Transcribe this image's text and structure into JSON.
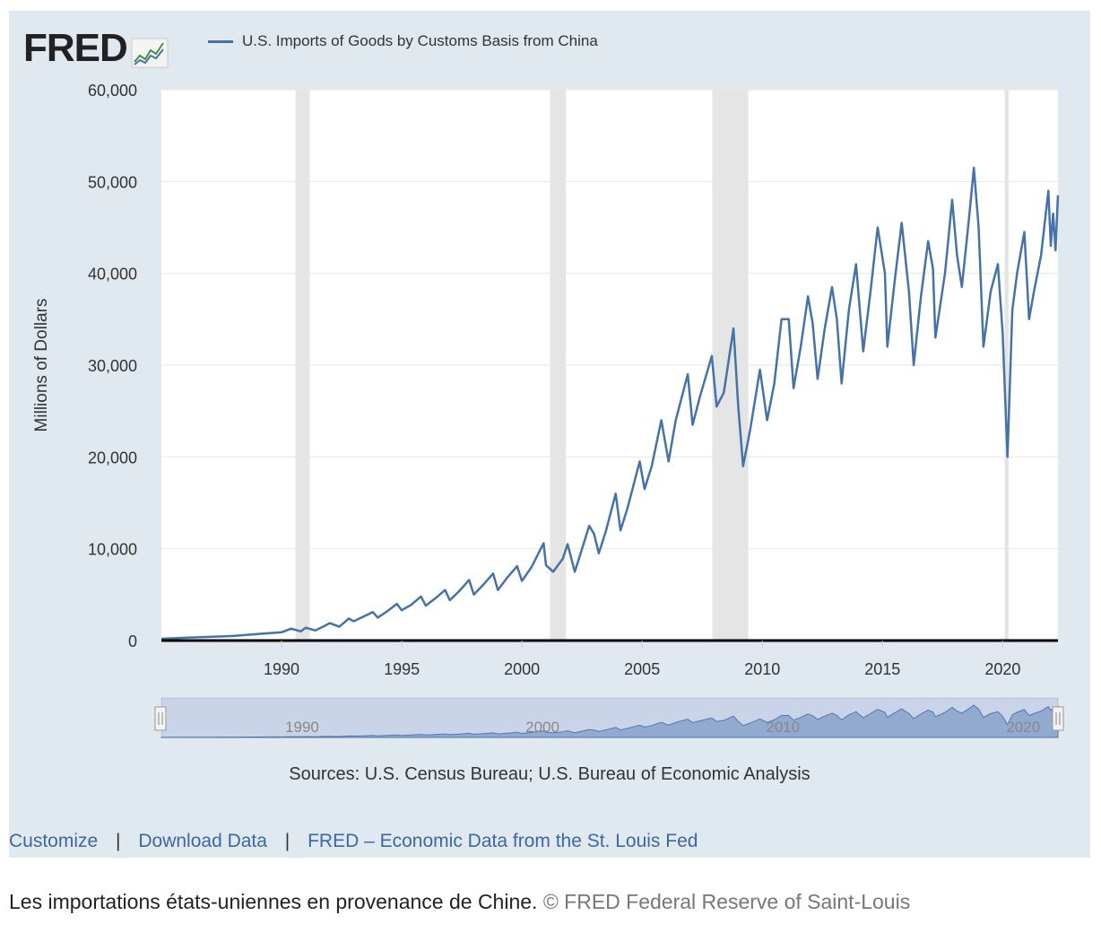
{
  "logo": {
    "text": "FRED",
    "icon": "fred-chart-icon"
  },
  "legend": {
    "label": "U.S. Imports of Goods by Customs Basis from China",
    "color": "#4572a7"
  },
  "sources": "Sources: U.S. Census Bureau; U.S. Bureau of Economic Analysis",
  "links": [
    "Customize",
    "Download Data",
    "FRED – Economic Data from the St. Louis Fed"
  ],
  "caption": {
    "text": "Les importations états-uniennes en provenance de Chine.",
    "credit": "© FRED Federal Reserve of Saint-Louis"
  },
  "navigator": {
    "labels": [
      "1990",
      "2000",
      "2010",
      "2020"
    ]
  },
  "chart_data": {
    "type": "line",
    "title": "",
    "xlabel": "",
    "ylabel": "Millions of Dollars",
    "xlim": [
      1985.0,
      2022.3
    ],
    "ylim": [
      0,
      60000
    ],
    "yticks": [
      0,
      10000,
      20000,
      30000,
      40000,
      50000,
      60000
    ],
    "ytick_labels": [
      "0",
      "10,000",
      "20,000",
      "30,000",
      "40,000",
      "50,000",
      "60,000"
    ],
    "xticks": [
      1990,
      1995,
      2000,
      2005,
      2010,
      2015,
      2020
    ],
    "xtick_labels": [
      "1990",
      "1995",
      "2000",
      "2005",
      "2010",
      "2015",
      "2020"
    ],
    "grid": true,
    "legend_position": "top-left",
    "recessions": [
      [
        1990.58,
        1991.17
      ],
      [
        2001.17,
        2001.83
      ],
      [
        2007.92,
        2009.42
      ],
      [
        2020.08,
        2020.25
      ]
    ],
    "series": [
      {
        "name": "U.S. Imports of Goods by Customs Basis from China",
        "color": "#4572a7",
        "points": [
          [
            1985.0,
            200
          ],
          [
            1986.0,
            300
          ],
          [
            1987.0,
            400
          ],
          [
            1988.0,
            500
          ],
          [
            1989.0,
            700
          ],
          [
            1989.5,
            800
          ],
          [
            1990.0,
            900
          ],
          [
            1990.4,
            1300
          ],
          [
            1990.8,
            1000
          ],
          [
            1991.0,
            1400
          ],
          [
            1991.4,
            1100
          ],
          [
            1991.8,
            1600
          ],
          [
            1992.0,
            1900
          ],
          [
            1992.4,
            1500
          ],
          [
            1992.8,
            2400
          ],
          [
            1993.0,
            2100
          ],
          [
            1993.4,
            2600
          ],
          [
            1993.8,
            3100
          ],
          [
            1994.0,
            2500
          ],
          [
            1994.4,
            3200
          ],
          [
            1994.8,
            4000
          ],
          [
            1995.0,
            3300
          ],
          [
            1995.4,
            3900
          ],
          [
            1995.8,
            4800
          ],
          [
            1996.0,
            3800
          ],
          [
            1996.4,
            4600
          ],
          [
            1996.8,
            5500
          ],
          [
            1997.0,
            4400
          ],
          [
            1997.4,
            5400
          ],
          [
            1997.8,
            6600
          ],
          [
            1998.0,
            5000
          ],
          [
            1998.4,
            6100
          ],
          [
            1998.8,
            7300
          ],
          [
            1999.0,
            5500
          ],
          [
            1999.4,
            6900
          ],
          [
            1999.8,
            8100
          ],
          [
            2000.0,
            6500
          ],
          [
            2000.4,
            8000
          ],
          [
            2000.9,
            10600
          ],
          [
            2001.0,
            8200
          ],
          [
            2001.3,
            7500
          ],
          [
            2001.7,
            8900
          ],
          [
            2001.9,
            10500
          ],
          [
            2002.2,
            7500
          ],
          [
            2002.5,
            10000
          ],
          [
            2002.8,
            12500
          ],
          [
            2003.0,
            11600
          ],
          [
            2003.2,
            9500
          ],
          [
            2003.5,
            12000
          ],
          [
            2003.9,
            16000
          ],
          [
            2004.1,
            12000
          ],
          [
            2004.4,
            14500
          ],
          [
            2004.9,
            19500
          ],
          [
            2005.1,
            16500
          ],
          [
            2005.4,
            19000
          ],
          [
            2005.8,
            24000
          ],
          [
            2006.1,
            19500
          ],
          [
            2006.4,
            24000
          ],
          [
            2006.9,
            29000
          ],
          [
            2007.1,
            23500
          ],
          [
            2007.4,
            26500
          ],
          [
            2007.9,
            31000
          ],
          [
            2008.1,
            25500
          ],
          [
            2008.4,
            27000
          ],
          [
            2008.8,
            34000
          ],
          [
            2009.0,
            25500
          ],
          [
            2009.2,
            19000
          ],
          [
            2009.5,
            23000
          ],
          [
            2009.9,
            29500
          ],
          [
            2010.2,
            24000
          ],
          [
            2010.5,
            28000
          ],
          [
            2010.8,
            35000
          ],
          [
            2011.1,
            35000
          ],
          [
            2011.3,
            27500
          ],
          [
            2011.6,
            32000
          ],
          [
            2011.9,
            37500
          ],
          [
            2012.1,
            34500
          ],
          [
            2012.3,
            28500
          ],
          [
            2012.6,
            34000
          ],
          [
            2012.9,
            38500
          ],
          [
            2013.1,
            35000
          ],
          [
            2013.3,
            28000
          ],
          [
            2013.6,
            36000
          ],
          [
            2013.9,
            41000
          ],
          [
            2014.2,
            31500
          ],
          [
            2014.5,
            38000
          ],
          [
            2014.8,
            45000
          ],
          [
            2015.1,
            40000
          ],
          [
            2015.2,
            32000
          ],
          [
            2015.5,
            39000
          ],
          [
            2015.8,
            45500
          ],
          [
            2016.1,
            38000
          ],
          [
            2016.3,
            30000
          ],
          [
            2016.6,
            37500
          ],
          [
            2016.9,
            43500
          ],
          [
            2017.1,
            40500
          ],
          [
            2017.2,
            33000
          ],
          [
            2017.6,
            40000
          ],
          [
            2017.9,
            48000
          ],
          [
            2018.1,
            42000
          ],
          [
            2018.3,
            38500
          ],
          [
            2018.6,
            46000
          ],
          [
            2018.8,
            51500
          ],
          [
            2019.0,
            45000
          ],
          [
            2019.2,
            32000
          ],
          [
            2019.5,
            38000
          ],
          [
            2019.8,
            41000
          ],
          [
            2020.0,
            33500
          ],
          [
            2020.2,
            20000
          ],
          [
            2020.4,
            36000
          ],
          [
            2020.6,
            40000
          ],
          [
            2020.9,
            44500
          ],
          [
            2021.1,
            35000
          ],
          [
            2021.3,
            38000
          ],
          [
            2021.6,
            42000
          ],
          [
            2021.9,
            49000
          ],
          [
            2022.0,
            43000
          ],
          [
            2022.1,
            46500
          ],
          [
            2022.2,
            42500
          ],
          [
            2022.3,
            48500
          ]
        ]
      }
    ]
  }
}
